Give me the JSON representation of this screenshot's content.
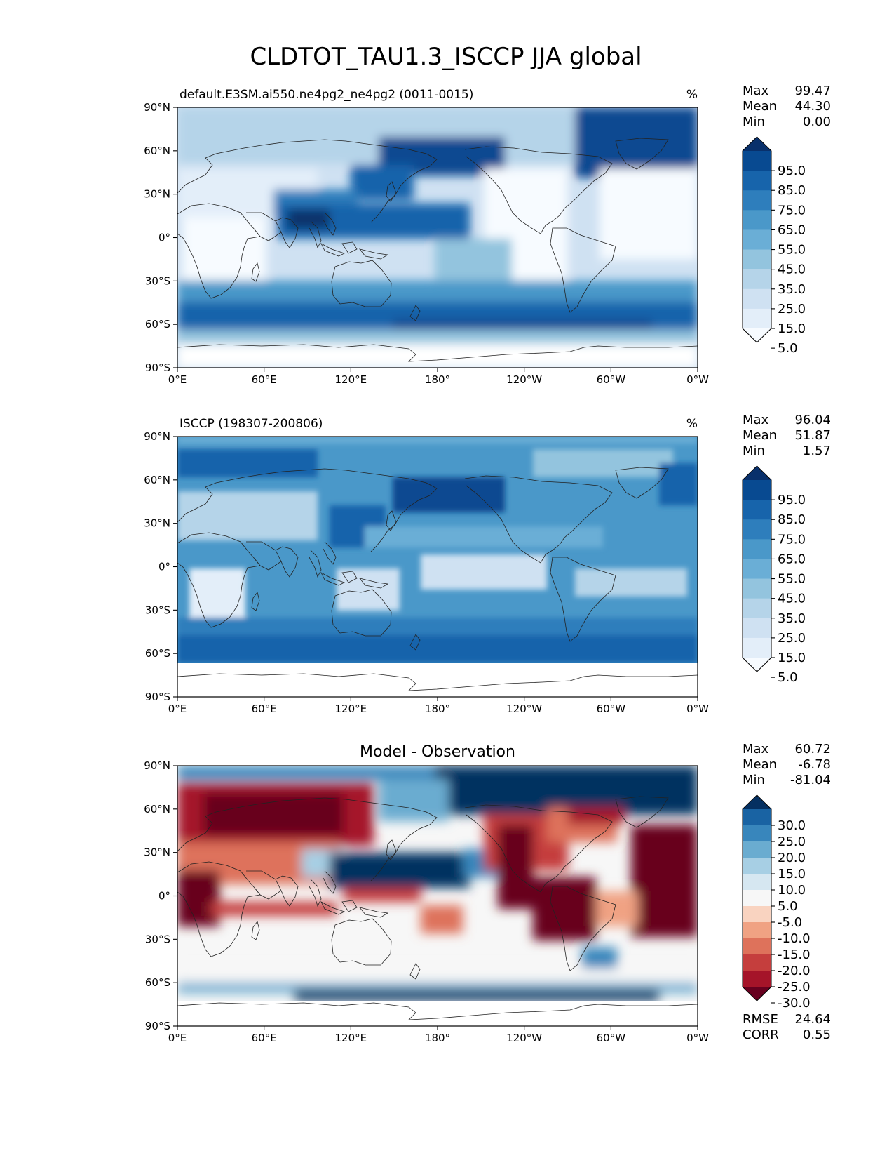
{
  "title": "CLDTOT_TAU1.3_ISCCP JJA global",
  "xticks": [
    "0°E",
    "60°E",
    "120°E",
    "180°",
    "120°W",
    "60°W",
    "0°W"
  ],
  "yticks": [
    "90°N",
    "60°N",
    "30°N",
    "0°",
    "30°S",
    "60°S",
    "90°S"
  ],
  "panels": [
    {
      "left_title": "default.E3SM.ai550.ne4pg2_ne4pg2 (0011-0015)",
      "center_title": "",
      "units": "%",
      "stats": [
        {
          "label": "Max",
          "value": "99.47"
        },
        {
          "label": "Mean",
          "value": "44.30"
        },
        {
          "label": "Min",
          "value": "0.00"
        }
      ],
      "colorbar_labels": [
        "95.0",
        "85.0",
        "75.0",
        "65.0",
        "55.0",
        "45.0",
        "35.0",
        "25.0",
        "15.0",
        "5.0"
      ],
      "footer_stats": []
    },
    {
      "left_title": "ISCCP (198307-200806)",
      "center_title": "",
      "units": "%",
      "stats": [
        {
          "label": "Max",
          "value": "96.04"
        },
        {
          "label": "Mean",
          "value": "51.87"
        },
        {
          "label": "Min",
          "value": "1.57"
        }
      ],
      "colorbar_labels": [
        "95.0",
        "85.0",
        "75.0",
        "65.0",
        "55.0",
        "45.0",
        "35.0",
        "25.0",
        "15.0",
        "5.0"
      ],
      "footer_stats": []
    },
    {
      "left_title": "",
      "center_title": "Model - Observation",
      "units": "",
      "stats": [
        {
          "label": "Max",
          "value": "60.72"
        },
        {
          "label": "Mean",
          "value": "-6.78"
        },
        {
          "label": "Min",
          "value": "-81.04"
        }
      ],
      "colorbar_labels": [
        "30.0",
        "25.0",
        "20.0",
        "15.0",
        "10.0",
        "5.0",
        "-5.0",
        "-10.0",
        "-15.0",
        "-20.0",
        "-25.0",
        "-30.0"
      ],
      "footer_stats": [
        {
          "label": "RMSE",
          "value": "24.64"
        },
        {
          "label": "CORR",
          "value": "0.55"
        }
      ]
    }
  ],
  "palettes": {
    "blues": [
      "#f7fbff",
      "#e3eef9",
      "#cfe1f2",
      "#b5d4e9",
      "#93c4de",
      "#6aaed6",
      "#4a98c9",
      "#2e7ebc",
      "#1764ab",
      "#084a91",
      "#08306b"
    ],
    "diverging": [
      "#67001f",
      "#a51429",
      "#c53e3d",
      "#de725b",
      "#f0a283",
      "#f9d3c0",
      "#f7f7f7",
      "#d6e7f1",
      "#a7cfe4",
      "#6aacd0",
      "#3886bc",
      "#1963a3",
      "#053061"
    ],
    "land_outline": "#222222"
  }
}
